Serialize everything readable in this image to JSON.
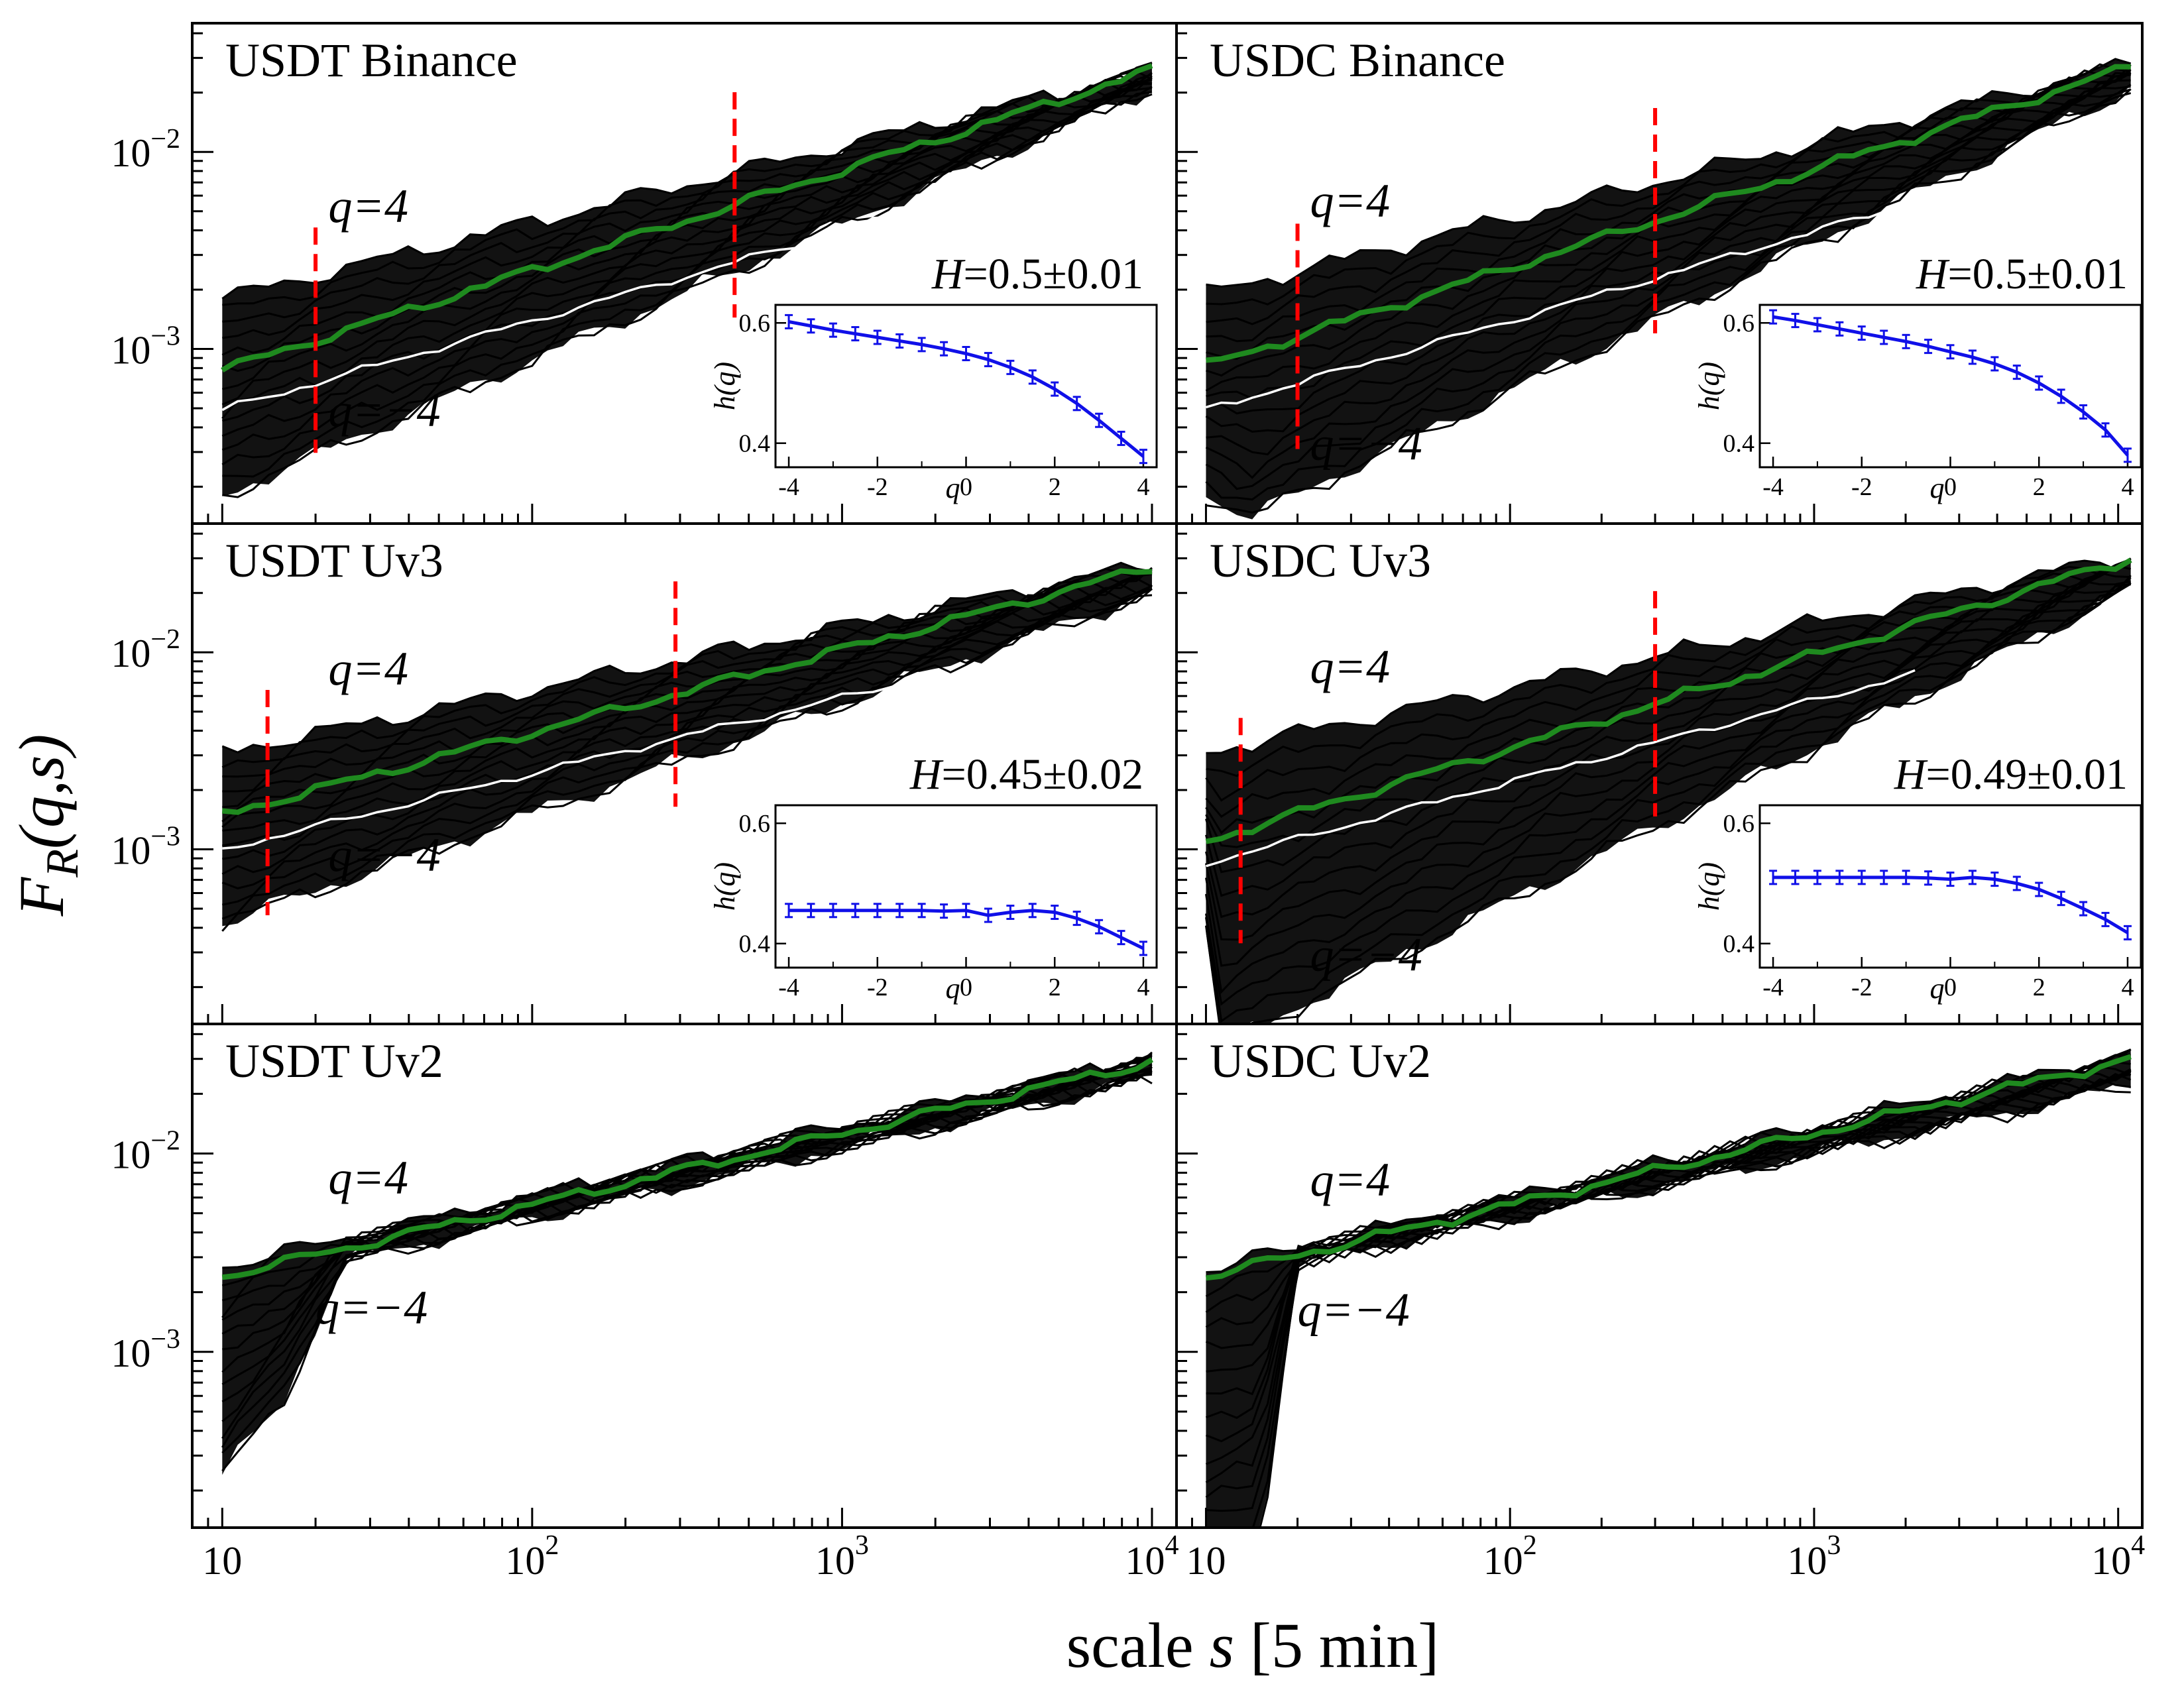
{
  "figure": {
    "ylabel": {
      "main": "F",
      "sub": "R",
      "args": "(q,s)"
    },
    "xlabel": {
      "prefix": "scale ",
      "var": "s",
      "suffix": " [5 min]"
    }
  },
  "chart_data": [
    {
      "id": "usdt-binance",
      "type": "line",
      "title": "USDT Binance",
      "col": 0,
      "row": 0,
      "xscale": "log",
      "yscale": "log",
      "xlim": [
        8,
        12000
      ],
      "ylim": [
        0.00013,
        0.045
      ],
      "s_range": [
        10,
        10000
      ],
      "q_max_label": "q=4",
      "q_min_label": "q=−4",
      "fq4": [
        0.0018,
        0.026
      ],
      "fqm4": [
        0.00018,
        0.021
      ],
      "fq2": [
        0.00078,
        0.026
      ],
      "fq0": [
        0.00049,
        0.0065
      ],
      "fqm4_dip": [],
      "fqm4_extra": [],
      "fit_range": [
        20,
        450
      ],
      "hurst_label": "H=0.5±0.01",
      "hurst_value": "0.5±0.01",
      "inset": {
        "xlabel": "q",
        "ylabel": "h(q)",
        "xlim": [
          -4.3,
          4.3
        ],
        "ylim": [
          0.36,
          0.63
        ],
        "xticks": [
          "-4",
          "-2",
          "0",
          "2",
          "4"
        ],
        "yticks": [
          "0.4",
          "0.6"
        ],
        "q": [
          -4,
          -3.5,
          -3,
          -2.5,
          -2,
          -1.5,
          -1,
          -0.5,
          0,
          0.5,
          1,
          1.5,
          2,
          2.5,
          3,
          3.5,
          4
        ],
        "h": [
          0.602,
          0.595,
          0.588,
          0.582,
          0.576,
          0.57,
          0.564,
          0.557,
          0.549,
          0.539,
          0.526,
          0.51,
          0.49,
          0.466,
          0.438,
          0.408,
          0.378
        ]
      }
    },
    {
      "id": "usdc-binance",
      "type": "line",
      "title": "USDC Binance",
      "col": 1,
      "row": 0,
      "xscale": "log",
      "yscale": "log",
      "xlim": [
        8,
        12000
      ],
      "ylim": [
        0.00013,
        0.045
      ],
      "s_range": [
        10,
        11000
      ],
      "q_max_label": "q=4",
      "q_min_label": "q=−4",
      "fq4": [
        0.0019,
        0.028
      ],
      "fqm4": [
        0.00018,
        0.021
      ],
      "fq2": [
        0.00082,
        0.027
      ],
      "fq0": [
        0.00049,
        0.0065
      ],
      "fqm4_dip": [
        [
          12,
          0.00016
        ],
        [
          14,
          0.00014
        ]
      ],
      "fqm4_extra": [],
      "fit_range": [
        20,
        300
      ],
      "hurst_label": "H=0.5±0.01",
      "hurst_value": "0.5±0.01",
      "inset": {
        "xlabel": "q",
        "ylabel": "h(q)",
        "xlim": [
          -4.3,
          4.3
        ],
        "ylim": [
          0.36,
          0.63
        ],
        "xticks": [
          "-4",
          "-2",
          "0",
          "2",
          "4"
        ],
        "yticks": [
          "0.4",
          "0.6"
        ],
        "q": [
          -4,
          -3.5,
          -3,
          -2.5,
          -2,
          -1.5,
          -1,
          -0.5,
          0,
          0.5,
          1,
          1.5,
          2,
          2.5,
          3,
          3.5,
          4
        ],
        "h": [
          0.61,
          0.604,
          0.597,
          0.59,
          0.583,
          0.576,
          0.569,
          0.561,
          0.552,
          0.543,
          0.532,
          0.518,
          0.5,
          0.478,
          0.452,
          0.422,
          0.38
        ]
      }
    },
    {
      "id": "usdt-uv3",
      "type": "line",
      "title": "USDT Uv3",
      "col": 0,
      "row": 1,
      "xscale": "log",
      "yscale": "log",
      "xlim": [
        8,
        12000
      ],
      "ylim": [
        0.00013,
        0.045
      ],
      "s_range": [
        10,
        10000
      ],
      "q_max_label": "q=4",
      "q_min_label": "q=−4",
      "fq4": [
        0.0031,
        0.028
      ],
      "fqm4": [
        0.00042,
        0.02
      ],
      "fq2": [
        0.0015,
        0.027
      ],
      "fq0": [
        0.001,
        0.009
      ],
      "fqm4_dip": [],
      "fqm4_extra": [],
      "fit_range": [
        14,
        290
      ],
      "hurst_label": "H=0.45±0.02",
      "hurst_value": "0.45±0.02",
      "inset": {
        "xlabel": "q",
        "ylabel": "h(q)",
        "xlim": [
          -4.3,
          4.3
        ],
        "ylim": [
          0.36,
          0.63
        ],
        "xticks": [
          "-4",
          "-2",
          "0",
          "2",
          "4"
        ],
        "yticks": [
          "0.4",
          "0.6"
        ],
        "q": [
          -4,
          -3.5,
          -3,
          -2.5,
          -2,
          -1.5,
          -1,
          -0.5,
          0,
          0.5,
          1,
          1.5,
          2,
          2.5,
          3,
          3.5,
          4
        ],
        "h": [
          0.455,
          0.455,
          0.455,
          0.455,
          0.455,
          0.455,
          0.455,
          0.454,
          0.455,
          0.447,
          0.452,
          0.455,
          0.452,
          0.442,
          0.428,
          0.41,
          0.392
        ]
      }
    },
    {
      "id": "usdc-uv3",
      "type": "line",
      "title": "USDC Uv3",
      "col": 1,
      "row": 1,
      "xscale": "log",
      "yscale": "log",
      "xlim": [
        8,
        12000
      ],
      "ylim": [
        0.00013,
        0.045
      ],
      "s_range": [
        10,
        11000
      ],
      "q_max_label": "q=4",
      "q_min_label": "q=−4",
      "fq4": [
        0.0031,
        0.031
      ],
      "fqm4": [
        0.0004,
        0.021
      ],
      "fq2": [
        0.0011,
        0.03
      ],
      "fq0": [
        0.00085,
        0.009
      ],
      "fqm4_dip": [
        [
          11,
          0.0001
        ]
      ],
      "fqm4_extra": [],
      "fit_range": [
        13,
        300
      ],
      "hurst_label": "H=0.49±0.01",
      "hurst_value": "0.49±0.01",
      "inset": {
        "xlabel": "q",
        "ylabel": "h(q)",
        "xlim": [
          -4.3,
          4.3
        ],
        "ylim": [
          0.36,
          0.63
        ],
        "xticks": [
          "-4",
          "-2",
          "0",
          "2",
          "4"
        ],
        "yticks": [
          "0.4",
          "0.6"
        ],
        "q": [
          -4,
          -3.5,
          -3,
          -2.5,
          -2,
          -1.5,
          -1,
          -0.5,
          0,
          0.5,
          1,
          1.5,
          2,
          2.5,
          3,
          3.5,
          4
        ],
        "h": [
          0.51,
          0.51,
          0.51,
          0.51,
          0.51,
          0.51,
          0.51,
          0.509,
          0.507,
          0.51,
          0.507,
          0.5,
          0.49,
          0.475,
          0.458,
          0.44,
          0.418
        ]
      }
    },
    {
      "id": "usdt-uv2",
      "type": "line",
      "title": "USDT Uv2",
      "col": 0,
      "row": 2,
      "xscale": "log",
      "yscale": "log",
      "xlim": [
        8,
        12000
      ],
      "ylim": [
        0.00013,
        0.045
      ],
      "s_range": [
        10,
        10000
      ],
      "q_max_label": "q=4",
      "q_min_label": "q=−4",
      "fq4": [
        0.0027,
        0.031
      ],
      "fqm4": [
        0.00024,
        0.024
      ],
      "fq2": [
        0.0024,
        0.029
      ],
      "fq0": null,
      "fqm4_dip": [
        [
          16,
          0.0006
        ]
      ],
      "fqm4_extra": [
        [
          25,
          0.0029
        ]
      ],
      "fit_range": null,
      "hurst_label": null,
      "hurst_value": null,
      "inset": null
    },
    {
      "id": "usdc-uv2",
      "type": "line",
      "title": "USDC Uv2",
      "col": 1,
      "row": 2,
      "xscale": "log",
      "yscale": "log",
      "xlim": [
        8,
        12000
      ],
      "ylim": [
        0.00013,
        0.045
      ],
      "s_range": [
        10,
        11000
      ],
      "q_max_label": "q=4",
      "q_min_label": "q=−4",
      "fq4": [
        0.0026,
        0.032
      ],
      "fqm4": [
        9e-05,
        0.022
      ],
      "fq2": [
        0.0024,
        0.03
      ],
      "fq0": null,
      "fqm4_dip": [
        [
          15,
          0.0001
        ]
      ],
      "fqm4_extra": [
        [
          20,
          0.0028
        ]
      ],
      "fit_range": null,
      "hurst_label": null,
      "hurst_value": null,
      "inset": null
    }
  ],
  "x_ticks": [
    {
      "base": "10",
      "exp": ""
    },
    {
      "base": "10",
      "exp": "2"
    },
    {
      "base": "10",
      "exp": "3"
    },
    {
      "base": "10",
      "exp": "4"
    }
  ],
  "y_ticks": [
    {
      "base": "10",
      "exp": "−3"
    },
    {
      "base": "10",
      "exp": "−2"
    }
  ],
  "colors": {
    "lines": "#000000",
    "q2": "#1f8a1f",
    "q0": "#ffffff",
    "fit": "#ff0000",
    "inset": "#1010e8"
  }
}
